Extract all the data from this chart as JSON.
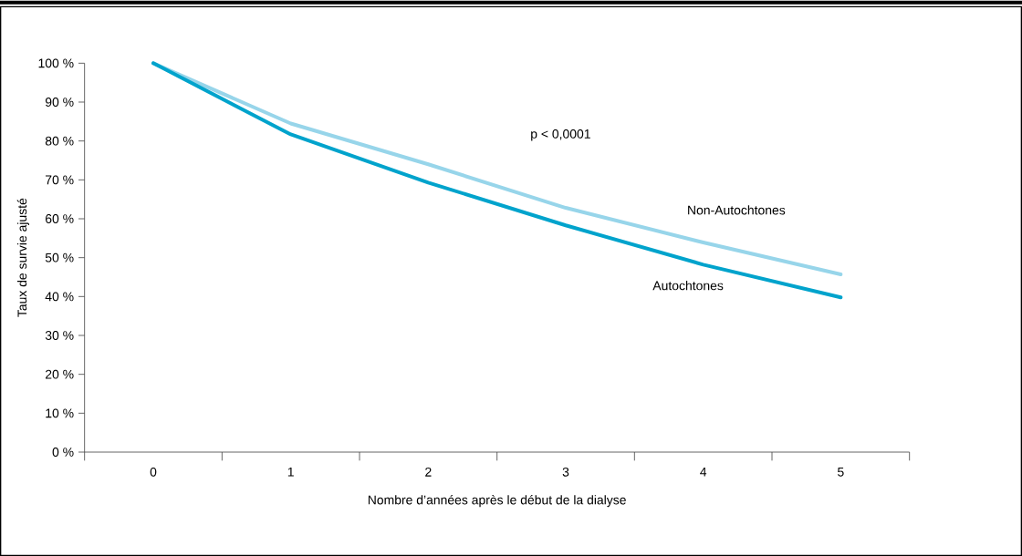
{
  "chart_data": {
    "type": "line",
    "xlabel": "Nombre d’années après le début de la dialyse",
    "ylabel": "Taux de survie ajusté",
    "categories": [
      "0",
      "1",
      "2",
      "3",
      "4",
      "5"
    ],
    "series": [
      {
        "name": "Non-Autochtones",
        "color": "#97d5ea",
        "values": [
          100,
          84.5,
          74,
          62.8,
          53.9,
          45.7
        ]
      },
      {
        "name": "Autochtones",
        "color": "#00a3cc",
        "values": [
          100,
          81.7,
          69.3,
          58.3,
          48.2,
          39.8
        ]
      }
    ],
    "ylim": [
      0,
      100
    ],
    "yticks": [
      {
        "value": 0,
        "label": "0 %"
      },
      {
        "value": 10,
        "label": "10 %"
      },
      {
        "value": 20,
        "label": "20 %"
      },
      {
        "value": 30,
        "label": "30 %"
      },
      {
        "value": 40,
        "label": "40 %"
      },
      {
        "value": 50,
        "label": "50 %"
      },
      {
        "value": 60,
        "label": "60 %"
      },
      {
        "value": 70,
        "label": "70 %"
      },
      {
        "value": 80,
        "label": "80 %"
      },
      {
        "value": 90,
        "label": "90 %"
      },
      {
        "value": 100,
        "label": "100 %"
      }
    ],
    "annotations": [
      "p < 0,0001"
    ],
    "legend": false,
    "grid": false,
    "marker": "none",
    "line_style": "solid"
  }
}
